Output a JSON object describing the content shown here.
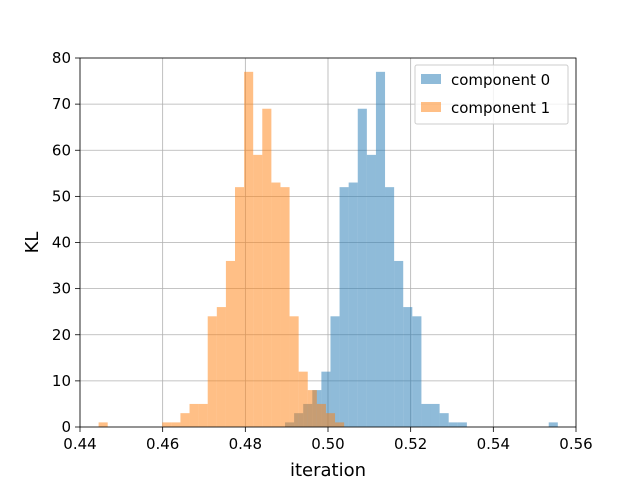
{
  "chart_data": {
    "type": "bar",
    "histogram": true,
    "title": "",
    "xlabel": "iteration",
    "ylabel": "KL",
    "xlim": [
      0.44,
      0.56
    ],
    "ylim": [
      0,
      80
    ],
    "xticks": [
      0.44,
      0.46,
      0.48,
      0.5,
      0.52,
      0.54,
      0.56
    ],
    "xtick_labels": [
      "0.44",
      "0.46",
      "0.48",
      "0.50",
      "0.52",
      "0.54",
      "0.56"
    ],
    "yticks": [
      0,
      10,
      20,
      30,
      40,
      50,
      60,
      70,
      80
    ],
    "ytick_labels": [
      "0",
      "10",
      "20",
      "30",
      "40",
      "50",
      "60",
      "70",
      "80"
    ],
    "grid": true,
    "legend_position": "top-right",
    "bin_width": 0.0022,
    "series": [
      {
        "name": "component 0",
        "color": "#1f77b4",
        "alpha": 0.5,
        "bins": [
          {
            "x0": 0.4896,
            "count": 1
          },
          {
            "x0": 0.4918,
            "count": 3
          },
          {
            "x0": 0.494,
            "count": 5
          },
          {
            "x0": 0.4962,
            "count": 8
          },
          {
            "x0": 0.4984,
            "count": 12
          },
          {
            "x0": 0.5006,
            "count": 24
          },
          {
            "x0": 0.5028,
            "count": 52
          },
          {
            "x0": 0.505,
            "count": 53
          },
          {
            "x0": 0.5072,
            "count": 69
          },
          {
            "x0": 0.5094,
            "count": 59
          },
          {
            "x0": 0.5116,
            "count": 77
          },
          {
            "x0": 0.5138,
            "count": 52
          },
          {
            "x0": 0.516,
            "count": 36
          },
          {
            "x0": 0.5182,
            "count": 26
          },
          {
            "x0": 0.5204,
            "count": 24
          },
          {
            "x0": 0.5226,
            "count": 5
          },
          {
            "x0": 0.5248,
            "count": 5
          },
          {
            "x0": 0.527,
            "count": 3
          },
          {
            "x0": 0.5292,
            "count": 1
          },
          {
            "x0": 0.5314,
            "count": 1
          },
          {
            "x0": 0.5534,
            "count": 1
          }
        ]
      },
      {
        "name": "component 1",
        "color": "#ff7f0e",
        "alpha": 0.5,
        "bins": [
          {
            "x0": 0.4445,
            "count": 1
          },
          {
            "x0": 0.4599,
            "count": 1
          },
          {
            "x0": 0.4621,
            "count": 1
          },
          {
            "x0": 0.4643,
            "count": 3
          },
          {
            "x0": 0.4665,
            "count": 5
          },
          {
            "x0": 0.4687,
            "count": 5
          },
          {
            "x0": 0.4709,
            "count": 24
          },
          {
            "x0": 0.4731,
            "count": 26
          },
          {
            "x0": 0.4753,
            "count": 36
          },
          {
            "x0": 0.4775,
            "count": 52
          },
          {
            "x0": 0.4797,
            "count": 77
          },
          {
            "x0": 0.4819,
            "count": 59
          },
          {
            "x0": 0.4841,
            "count": 69
          },
          {
            "x0": 0.4863,
            "count": 53
          },
          {
            "x0": 0.4885,
            "count": 52
          },
          {
            "x0": 0.4907,
            "count": 24
          },
          {
            "x0": 0.4929,
            "count": 12
          },
          {
            "x0": 0.4951,
            "count": 8
          },
          {
            "x0": 0.4973,
            "count": 5
          },
          {
            "x0": 0.4995,
            "count": 3
          },
          {
            "x0": 0.5017,
            "count": 1
          }
        ]
      }
    ]
  }
}
